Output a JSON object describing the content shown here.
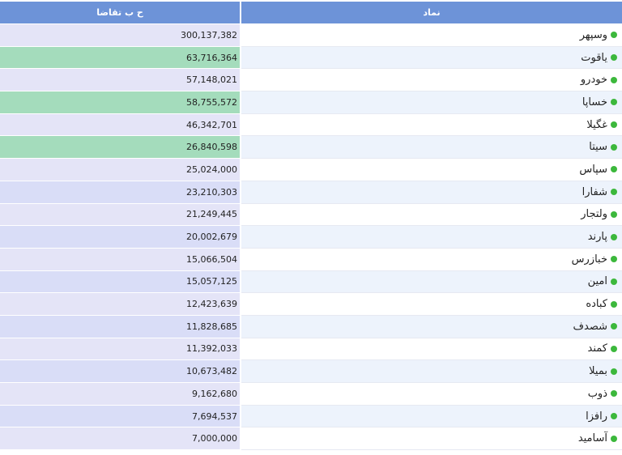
{
  "table": {
    "headers": {
      "symbol": "نماد",
      "volume": "ح ب تقاضا"
    },
    "rows": [
      {
        "symbol": "وسپهر",
        "volume": "300,137,382",
        "highlight": false
      },
      {
        "symbol": "یاقوت",
        "volume": "63,716,364",
        "highlight": true
      },
      {
        "symbol": "خودرو",
        "volume": "57,148,021",
        "highlight": false
      },
      {
        "symbol": "خساپا",
        "volume": "58,755,572",
        "highlight": true
      },
      {
        "symbol": "غگیلا",
        "volume": "46,342,701",
        "highlight": false
      },
      {
        "symbol": "سیتا",
        "volume": "26,840,598",
        "highlight": true
      },
      {
        "symbol": "سپاس",
        "volume": "25,024,000",
        "highlight": false
      },
      {
        "symbol": "شفارا",
        "volume": "23,210,303",
        "highlight": false
      },
      {
        "symbol": "ولتجار",
        "volume": "21,249,445",
        "highlight": false
      },
      {
        "symbol": "پارند",
        "volume": "20,002,679",
        "highlight": false
      },
      {
        "symbol": "خبازرس",
        "volume": "15,066,504",
        "highlight": false
      },
      {
        "symbol": "امین",
        "volume": "15,057,125",
        "highlight": false
      },
      {
        "symbol": "کباده",
        "volume": "12,423,639",
        "highlight": false
      },
      {
        "symbol": "شصدف",
        "volume": "11,828,685",
        "highlight": false
      },
      {
        "symbol": "کمند",
        "volume": "11,392,033",
        "highlight": false
      },
      {
        "symbol": "بمیلا",
        "volume": "10,673,482",
        "highlight": false
      },
      {
        "symbol": "ذوب",
        "volume": "9,162,680",
        "highlight": false
      },
      {
        "symbol": "رافزا",
        "volume": "7,694,537",
        "highlight": false
      },
      {
        "symbol": "آسامید",
        "volume": "7,000,000",
        "highlight": false
      }
    ]
  },
  "colors": {
    "header_bg": "#6d93d8",
    "status_dot": "#3cb83c",
    "highlight_bg": "#a4dcbc"
  }
}
